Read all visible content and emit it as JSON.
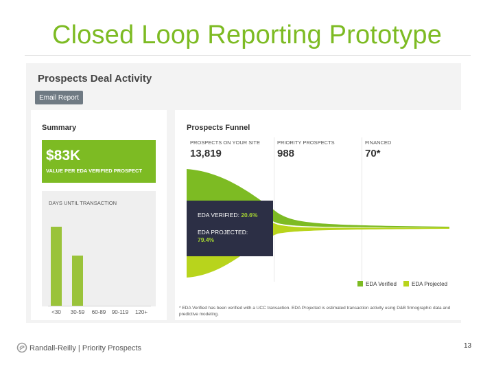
{
  "slide": {
    "title": "Closed Loop Reporting Prototype",
    "page_number": "13",
    "footer": "Randall-Reilly | Priority Prospects",
    "accent_color": "#7dbb23"
  },
  "app": {
    "page_heading": "Prospects Deal Activity",
    "email_button": "Email Report",
    "summary": {
      "heading": "Summary",
      "value": "$83K",
      "value_caption": "VALUE PER EDA VERIFIED PROSPECT",
      "days_caption": "DAYS UNTIL TRANSACTION"
    },
    "funnel": {
      "heading": "Prospects Funnel",
      "metrics": [
        {
          "label": "PROSPECTS ON YOUR SITE",
          "value": "13,819"
        },
        {
          "label": "PRIORITY PROSPECTS",
          "value": "988"
        },
        {
          "label": "FINANCED",
          "value": "70*"
        }
      ],
      "tooltip": {
        "verified_label": "EDA VERIFIED:",
        "verified_value": "20.6%",
        "projected_label": "EDA PROJECTED:",
        "projected_value": "79.4%"
      },
      "legend": [
        {
          "label": "EDA Verified",
          "color": "#7dbb23"
        },
        {
          "label": "EDA Projected",
          "color": "#b8d41c"
        }
      ],
      "footnote": "* EDA Verified has been verified with a UCC transaction. EDA Projected is estimated transaction activity using D&B firmographic data and predictive modeling."
    }
  },
  "chart_data": {
    "type": "bar",
    "title": "DAYS UNTIL TRANSACTION",
    "categories": [
      "<30",
      "30-59",
      "60-89",
      "90-119",
      "120+"
    ],
    "values": [
      0.83,
      0.53,
      0,
      0,
      0
    ],
    "ylim": [
      0,
      1
    ],
    "grid": false,
    "legend": "none"
  }
}
